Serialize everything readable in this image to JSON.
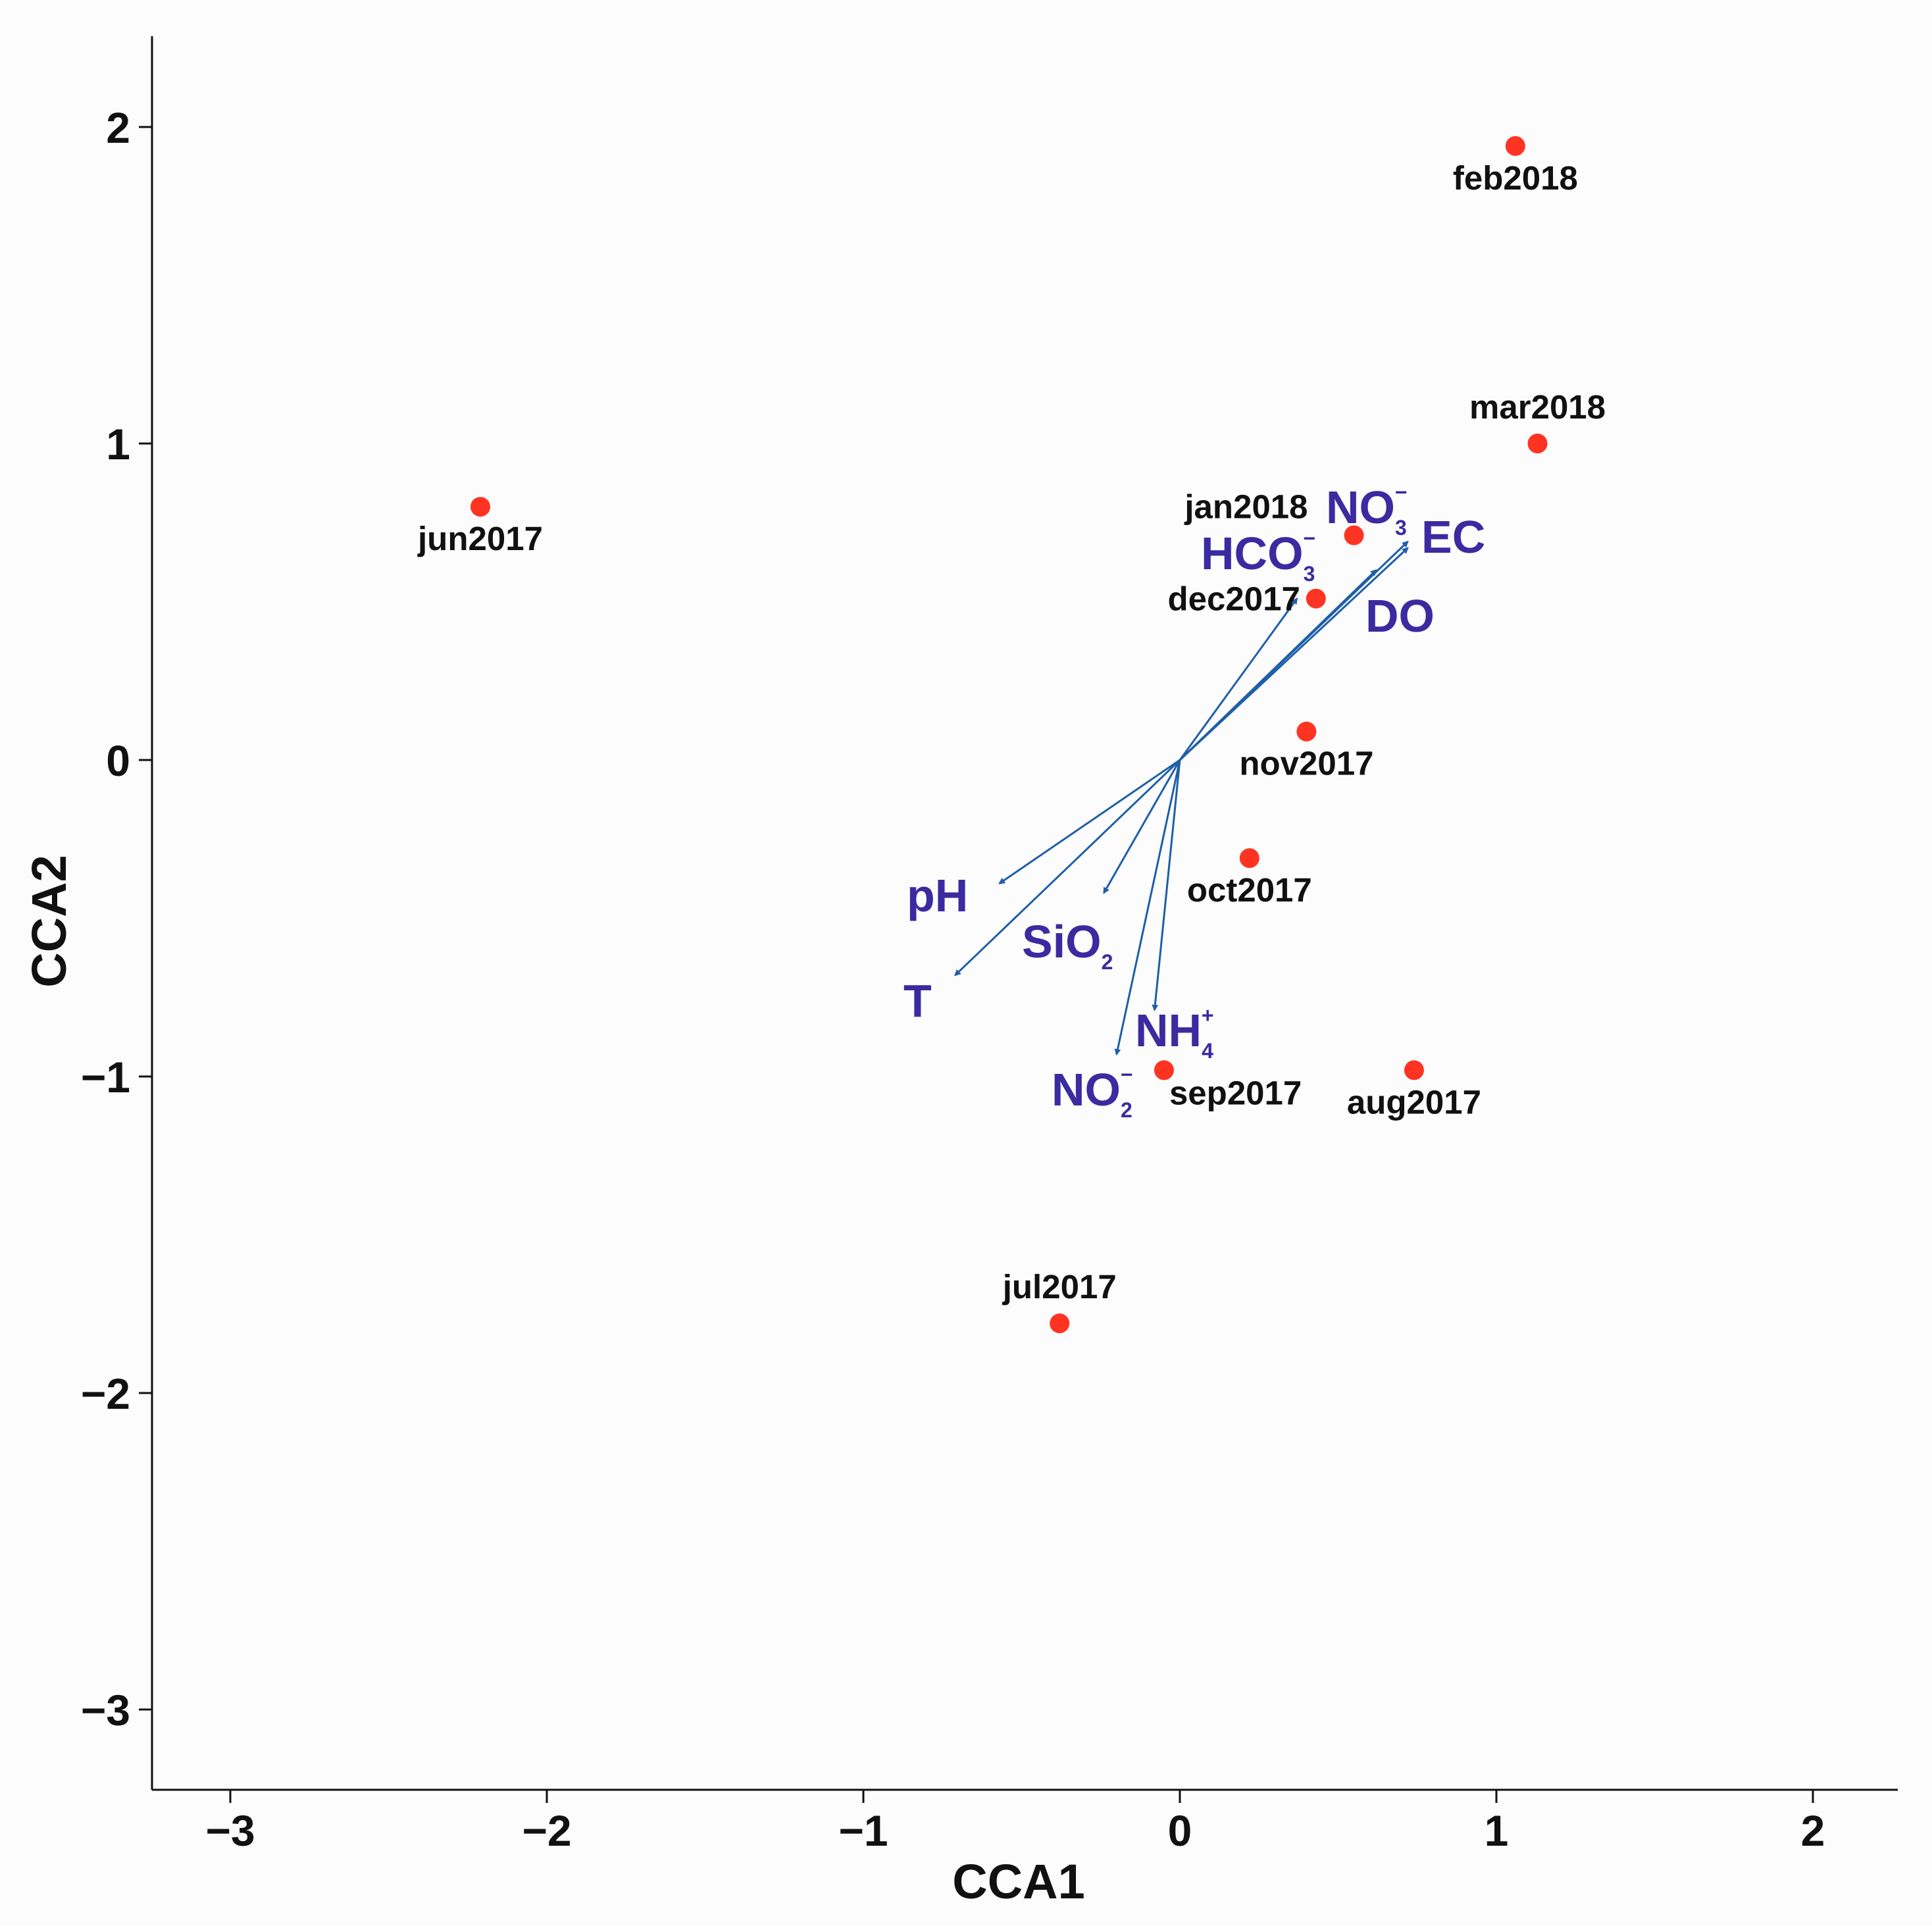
{
  "chart_data": {
    "type": "scatter",
    "title": "",
    "xlabel": "CCA1",
    "ylabel": "CCA2",
    "xlim": [
      -3.25,
      2.3
    ],
    "ylim": [
      -3.25,
      2.3
    ],
    "x_ticks": [
      {
        "value": -3,
        "label": "−3"
      },
      {
        "value": -2,
        "label": "−2"
      },
      {
        "value": -1,
        "label": "−1"
      },
      {
        "value": 0,
        "label": "0"
      },
      {
        "value": 1,
        "label": "1"
      },
      {
        "value": 2,
        "label": "2"
      }
    ],
    "y_ticks": [
      {
        "value": 2,
        "label": "2"
      },
      {
        "value": 1,
        "label": "1"
      },
      {
        "value": 0,
        "label": "0"
      },
      {
        "value": -1,
        "label": "−1"
      },
      {
        "value": -2,
        "label": "−2"
      },
      {
        "value": -3,
        "label": "−3"
      }
    ],
    "point_color": "#ff3322",
    "vector_color": "#1f5fa8",
    "vector_label_color": "#3b2aa0",
    "points": [
      {
        "label": "feb2018",
        "x": 1.06,
        "y": 1.94,
        "label_anchor": "below"
      },
      {
        "label": "mar2018",
        "x": 1.13,
        "y": 1.0,
        "label_anchor": "above"
      },
      {
        "label": "jun2017",
        "x": -2.21,
        "y": 0.8,
        "label_anchor": "below"
      },
      {
        "label": "jan2018",
        "x": 0.55,
        "y": 0.71,
        "label_anchor": "above-left"
      },
      {
        "label": "dec2017",
        "x": 0.43,
        "y": 0.51,
        "label_anchor": "left"
      },
      {
        "label": "nov2017",
        "x": 0.4,
        "y": 0.09,
        "label_anchor": "below"
      },
      {
        "label": "oct2017",
        "x": 0.22,
        "y": -0.31,
        "label_anchor": "below"
      },
      {
        "label": "sep2017",
        "x": -0.05,
        "y": -0.98,
        "label_anchor": "below-right"
      },
      {
        "label": "aug2017",
        "x": 0.74,
        "y": -0.98,
        "label_anchor": "below"
      },
      {
        "label": "jul2017",
        "x": -0.38,
        "y": -1.78,
        "label_anchor": "above"
      }
    ],
    "vectors": [
      {
        "name": "NO3-",
        "base": "NO",
        "sub": "3",
        "sup": "−",
        "x": 0.72,
        "y": 0.69
      },
      {
        "name": "EC",
        "base": "EC",
        "sub": "",
        "sup": "",
        "x": 0.72,
        "y": 0.67
      },
      {
        "name": "HCO3-",
        "base": "HCO",
        "sub": "3",
        "sup": "−",
        "x": 0.37,
        "y": 0.51
      },
      {
        "name": "DO",
        "base": "DO",
        "sub": "",
        "sup": "",
        "x": 0.62,
        "y": 0.6
      },
      {
        "name": "pH",
        "base": "pH",
        "sub": "",
        "sup": "",
        "x": -0.57,
        "y": -0.39
      },
      {
        "name": "SiO2",
        "base": "SiO",
        "sub": "2",
        "sup": "",
        "x": -0.24,
        "y": -0.42
      },
      {
        "name": "T",
        "base": "T",
        "sub": "",
        "sup": "",
        "x": -0.71,
        "y": -0.68
      },
      {
        "name": "NH4+",
        "base": "NH",
        "sub": "4",
        "sup": "+",
        "x": -0.08,
        "y": -0.79
      },
      {
        "name": "NO2-",
        "base": "NO",
        "sub": "2",
        "sup": "−",
        "x": -0.2,
        "y": -0.93
      }
    ]
  }
}
